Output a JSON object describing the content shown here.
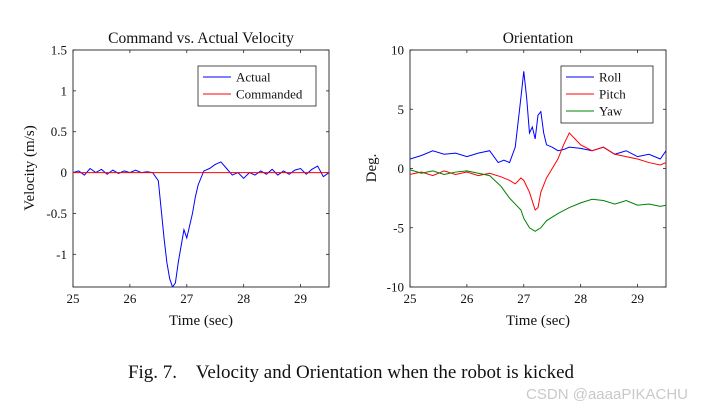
{
  "chart_data": [
    {
      "type": "line",
      "title": "Command vs. Actual Velocity",
      "xlabel": "Time (sec)",
      "ylabel": "Velocity (m/s)",
      "xlim": [
        25,
        29.5
      ],
      "ylim": [
        -1.4,
        1.5
      ],
      "xticks": [
        "25",
        "26",
        "27",
        "28",
        "29"
      ],
      "yticks": [
        "1.5",
        "1",
        "0.5",
        "0",
        "-0.5",
        "-1"
      ],
      "legend_position": "top-right",
      "series": [
        {
          "name": "Actual",
          "color": "#0000ff",
          "x": [
            25.0,
            25.1,
            25.2,
            25.3,
            25.4,
            25.5,
            25.6,
            25.7,
            25.8,
            25.9,
            26.0,
            26.1,
            26.2,
            26.3,
            26.4,
            26.5,
            26.55,
            26.6,
            26.65,
            26.7,
            26.75,
            26.8,
            26.85,
            26.9,
            26.95,
            27.0,
            27.05,
            27.1,
            27.15,
            27.2,
            27.3,
            27.4,
            27.5,
            27.6,
            27.7,
            27.8,
            27.9,
            28.0,
            28.1,
            28.2,
            28.3,
            28.4,
            28.5,
            28.6,
            28.7,
            28.8,
            28.9,
            29.0,
            29.1,
            29.2,
            29.3,
            29.4,
            29.5
          ],
          "y": [
            0.0,
            0.02,
            -0.03,
            0.05,
            0.0,
            0.04,
            -0.02,
            0.03,
            -0.01,
            0.02,
            0.0,
            0.03,
            0.0,
            0.01,
            0.0,
            -0.1,
            -0.45,
            -0.8,
            -1.1,
            -1.3,
            -1.4,
            -1.35,
            -1.1,
            -0.9,
            -0.7,
            -0.8,
            -0.65,
            -0.5,
            -0.3,
            -0.15,
            0.02,
            0.05,
            0.1,
            0.13,
            0.05,
            -0.03,
            0.0,
            -0.07,
            0.0,
            -0.03,
            0.02,
            -0.02,
            0.04,
            -0.03,
            0.02,
            -0.02,
            0.03,
            0.05,
            -0.02,
            0.04,
            0.08,
            -0.05,
            0.0
          ]
        },
        {
          "name": "Commanded",
          "color": "#ff0000",
          "x": [
            25,
            29.5
          ],
          "y": [
            0,
            0
          ]
        }
      ]
    },
    {
      "type": "line",
      "title": "Orientation",
      "xlabel": "Time (sec)",
      "ylabel": "Deg.",
      "xlim": [
        25,
        29.5
      ],
      "ylim": [
        -10,
        10
      ],
      "xticks": [
        "25",
        "26",
        "27",
        "28",
        "29"
      ],
      "yticks": [
        "10",
        "5",
        "0",
        "-5",
        "-10"
      ],
      "legend_position": "top-right",
      "series": [
        {
          "name": "Roll",
          "color": "#0000ff",
          "x": [
            25.0,
            25.2,
            25.4,
            25.6,
            25.8,
            26.0,
            26.2,
            26.4,
            26.55,
            26.65,
            26.75,
            26.85,
            26.95,
            27.0,
            27.05,
            27.1,
            27.15,
            27.2,
            27.25,
            27.3,
            27.35,
            27.4,
            27.5,
            27.6,
            27.7,
            27.8,
            28.0,
            28.2,
            28.4,
            28.6,
            28.8,
            29.0,
            29.2,
            29.4,
            29.5
          ],
          "y": [
            0.8,
            1.1,
            1.5,
            1.2,
            1.3,
            1.0,
            1.3,
            1.5,
            0.5,
            0.7,
            0.5,
            1.8,
            6.0,
            8.2,
            6.0,
            3.0,
            3.5,
            2.5,
            4.5,
            4.8,
            3.0,
            2.0,
            1.8,
            1.5,
            1.6,
            1.8,
            1.7,
            1.5,
            1.8,
            1.2,
            1.5,
            1.0,
            1.2,
            0.8,
            1.5
          ]
        },
        {
          "name": "Pitch",
          "color": "#ff0000",
          "x": [
            25.0,
            25.2,
            25.4,
            25.6,
            25.8,
            26.0,
            26.2,
            26.4,
            26.6,
            26.75,
            26.85,
            26.95,
            27.0,
            27.1,
            27.2,
            27.25,
            27.3,
            27.4,
            27.5,
            27.6,
            27.7,
            27.8,
            27.9,
            28.0,
            28.2,
            28.4,
            28.6,
            28.8,
            29.0,
            29.2,
            29.4,
            29.5
          ],
          "y": [
            -0.5,
            -0.3,
            -0.6,
            -0.2,
            -0.5,
            -0.3,
            -0.6,
            -0.4,
            -0.7,
            -1.0,
            -1.3,
            -0.8,
            -1.0,
            -2.0,
            -3.5,
            -3.3,
            -2.0,
            -0.8,
            0.0,
            0.8,
            2.0,
            3.0,
            2.5,
            2.0,
            1.5,
            1.8,
            1.2,
            1.0,
            0.8,
            0.5,
            0.3,
            0.5
          ]
        },
        {
          "name": "Yaw",
          "color": "#008000",
          "x": [
            25.0,
            25.2,
            25.4,
            25.6,
            25.8,
            26.0,
            26.2,
            26.4,
            26.6,
            26.75,
            26.85,
            26.95,
            27.0,
            27.1,
            27.2,
            27.3,
            27.4,
            27.6,
            27.8,
            28.0,
            28.2,
            28.4,
            28.6,
            28.8,
            29.0,
            29.2,
            29.4,
            29.5
          ],
          "y": [
            -0.1,
            -0.4,
            -0.2,
            -0.5,
            -0.3,
            -0.2,
            -0.4,
            -0.6,
            -1.5,
            -2.5,
            -3.0,
            -3.5,
            -4.2,
            -5.0,
            -5.3,
            -5.0,
            -4.4,
            -3.8,
            -3.3,
            -2.9,
            -2.6,
            -2.7,
            -3.0,
            -2.7,
            -3.1,
            -3.0,
            -3.2,
            -3.1
          ]
        }
      ]
    }
  ],
  "caption": {
    "label": "Fig. 7.",
    "text": "Velocity and Orientation when the robot is kicked"
  },
  "watermark": "CSDN @aaaaPIKACHU"
}
